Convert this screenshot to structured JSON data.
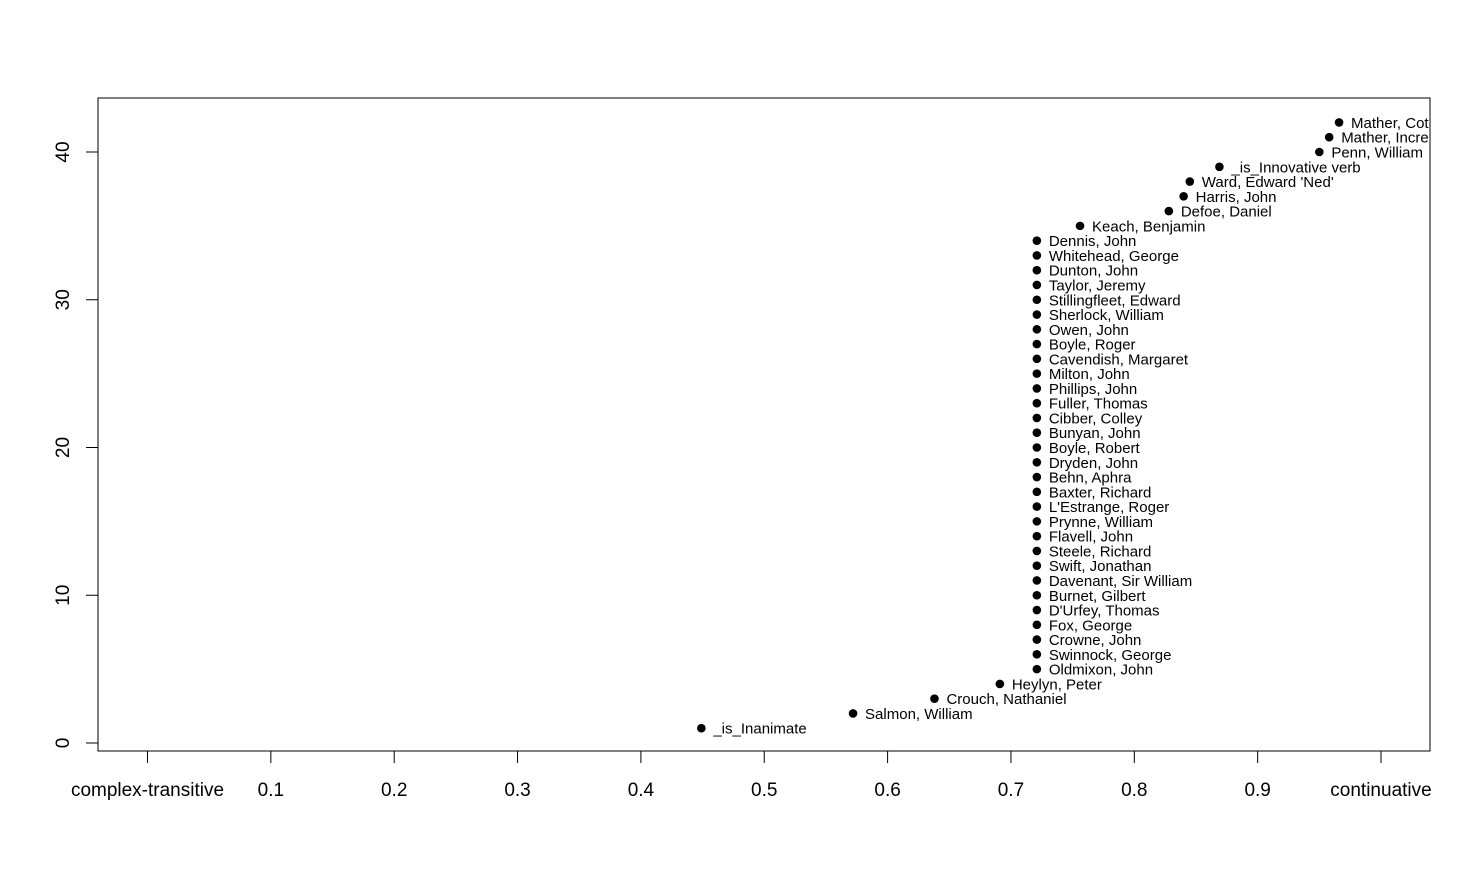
{
  "chart_data": {
    "type": "scatter",
    "title": "",
    "xlabel": "",
    "ylabel": "",
    "xlim": [
      0,
      1
    ],
    "ylim": [
      0,
      42
    ],
    "grid": false,
    "x_ticks": [
      {
        "value": 0.0,
        "label": "complex-transitive"
      },
      {
        "value": 0.1,
        "label": "0.1"
      },
      {
        "value": 0.2,
        "label": "0.2"
      },
      {
        "value": 0.3,
        "label": "0.3"
      },
      {
        "value": 0.4,
        "label": "0.4"
      },
      {
        "value": 0.5,
        "label": "0.5"
      },
      {
        "value": 0.6,
        "label": "0.6"
      },
      {
        "value": 0.7,
        "label": "0.7"
      },
      {
        "value": 0.8,
        "label": "0.8"
      },
      {
        "value": 0.9,
        "label": "0.9"
      },
      {
        "value": 1.0,
        "label": "continuative"
      }
    ],
    "y_ticks": [
      0,
      10,
      20,
      30,
      40
    ],
    "points": [
      {
        "x": 0.449,
        "y": 1,
        "label": "_is_Inanimate"
      },
      {
        "x": 0.572,
        "y": 2,
        "label": "Salmon, William"
      },
      {
        "x": 0.638,
        "y": 3,
        "label": "Crouch, Nathaniel"
      },
      {
        "x": 0.691,
        "y": 4,
        "label": "Heylyn, Peter"
      },
      {
        "x": 0.721,
        "y": 5,
        "label": "Oldmixon, John"
      },
      {
        "x": 0.721,
        "y": 6,
        "label": "Swinnock, George"
      },
      {
        "x": 0.721,
        "y": 7,
        "label": "Crowne, John"
      },
      {
        "x": 0.721,
        "y": 8,
        "label": "Fox, George"
      },
      {
        "x": 0.721,
        "y": 9,
        "label": "D'Urfey, Thomas"
      },
      {
        "x": 0.721,
        "y": 10,
        "label": "Burnet, Gilbert"
      },
      {
        "x": 0.721,
        "y": 11,
        "label": "Davenant, Sir William"
      },
      {
        "x": 0.721,
        "y": 12,
        "label": "Swift, Jonathan"
      },
      {
        "x": 0.721,
        "y": 13,
        "label": "Steele, Richard"
      },
      {
        "x": 0.721,
        "y": 14,
        "label": "Flavell, John"
      },
      {
        "x": 0.721,
        "y": 15,
        "label": "Prynne, William"
      },
      {
        "x": 0.721,
        "y": 16,
        "label": "L'Estrange, Roger"
      },
      {
        "x": 0.721,
        "y": 17,
        "label": "Baxter, Richard"
      },
      {
        "x": 0.721,
        "y": 18,
        "label": "Behn, Aphra"
      },
      {
        "x": 0.721,
        "y": 19,
        "label": "Dryden, John"
      },
      {
        "x": 0.721,
        "y": 20,
        "label": "Boyle, Robert"
      },
      {
        "x": 0.721,
        "y": 21,
        "label": "Bunyan, John"
      },
      {
        "x": 0.721,
        "y": 22,
        "label": "Cibber, Colley"
      },
      {
        "x": 0.721,
        "y": 23,
        "label": "Fuller, Thomas"
      },
      {
        "x": 0.721,
        "y": 24,
        "label": "Phillips, John"
      },
      {
        "x": 0.721,
        "y": 25,
        "label": "Milton, John"
      },
      {
        "x": 0.721,
        "y": 26,
        "label": "Cavendish, Margaret"
      },
      {
        "x": 0.721,
        "y": 27,
        "label": "Boyle, Roger"
      },
      {
        "x": 0.721,
        "y": 28,
        "label": "Owen, John"
      },
      {
        "x": 0.721,
        "y": 29,
        "label": "Sherlock, William"
      },
      {
        "x": 0.721,
        "y": 30,
        "label": "Stillingfleet, Edward"
      },
      {
        "x": 0.721,
        "y": 31,
        "label": "Taylor, Jeremy"
      },
      {
        "x": 0.721,
        "y": 32,
        "label": "Dunton, John"
      },
      {
        "x": 0.721,
        "y": 33,
        "label": "Whitehead, George"
      },
      {
        "x": 0.721,
        "y": 34,
        "label": "Dennis, John"
      },
      {
        "x": 0.756,
        "y": 35,
        "label": "Keach, Benjamin"
      },
      {
        "x": 0.828,
        "y": 36,
        "label": "Defoe, Daniel"
      },
      {
        "x": 0.84,
        "y": 37,
        "label": "Harris, John"
      },
      {
        "x": 0.845,
        "y": 38,
        "label": "Ward, Edward 'Ned'"
      },
      {
        "x": 0.869,
        "y": 39,
        "label": "_is_Innovative verb"
      },
      {
        "x": 0.95,
        "y": 40,
        "label": "Penn, William"
      },
      {
        "x": 0.958,
        "y": 41,
        "label": "Mather, Incre"
      },
      {
        "x": 0.966,
        "y": 42,
        "label": "Mather, Cot"
      }
    ]
  }
}
